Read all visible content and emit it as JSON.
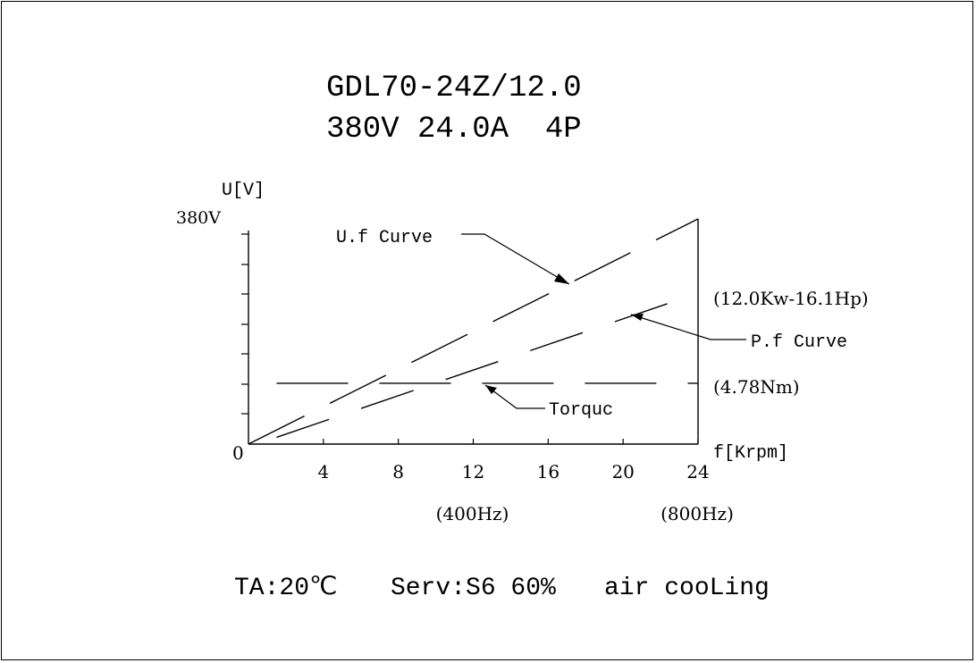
{
  "header": {
    "model": "GDL70-24Z/12.0",
    "rating": "380V 24.0A  4P"
  },
  "chart_data": {
    "type": "line",
    "x": [
      0,
      4,
      8,
      12,
      16,
      20,
      24
    ],
    "xlabel": "f[Krpm]",
    "ylabel": "U[V]",
    "y_top_label": "380V",
    "origin_label": "0",
    "xlim": [
      0,
      24
    ],
    "x_tick_labels": [
      "4",
      "8",
      "12",
      "16",
      "20",
      "24"
    ],
    "freq_labels": [
      {
        "x": 12,
        "text": "(400Hz)"
      },
      {
        "x": 24,
        "text": "(800Hz)"
      }
    ],
    "grid": false,
    "legend": "callouts",
    "series": [
      {
        "name": "U.f Curve",
        "points": [
          [
            0,
            0
          ],
          [
            24,
            1.0
          ]
        ],
        "style": "dashed"
      },
      {
        "name": "P.f Curve",
        "points": [
          [
            1.5,
            0.03
          ],
          [
            24,
            0.67
          ]
        ],
        "style": "dashed",
        "end_label": "(12.0Kw-16.1Hp)"
      },
      {
        "name": "Torquc",
        "points": [
          [
            1.5,
            0.27
          ],
          [
            24,
            0.27
          ]
        ],
        "style": "dashed",
        "end_label": "(4.78Nm)"
      }
    ]
  },
  "footer": {
    "ambient": "TA:20℃",
    "service": "Serv:S6 60%",
    "cooling": "air cooLing"
  }
}
